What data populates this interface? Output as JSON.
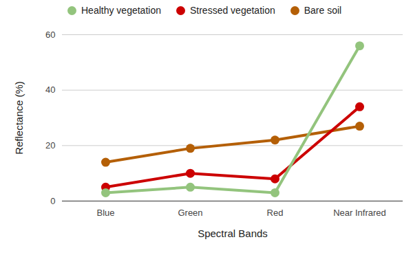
{
  "chart_data": {
    "type": "line",
    "x_label": "Spectral Bands",
    "y_label": "Reflectance (%)",
    "categories": [
      "Blue",
      "Green",
      "Red",
      "Near Infrared"
    ],
    "series": [
      {
        "name": "Healthy vegetation",
        "color": "#93c47d",
        "marker": "circle",
        "values": [
          3,
          5,
          3,
          56
        ]
      },
      {
        "name": "Stressed vegetation",
        "color": "#cc0000",
        "marker": "circle",
        "values": [
          5,
          10,
          8,
          34
        ]
      },
      {
        "name": "Bare soil",
        "color": "#b45f06",
        "marker": "circle",
        "values": [
          14,
          19,
          22,
          27
        ]
      }
    ],
    "ylim": [
      0,
      60
    ],
    "yticks": [
      0,
      20,
      40,
      60
    ],
    "grid": true,
    "legend": "top"
  }
}
